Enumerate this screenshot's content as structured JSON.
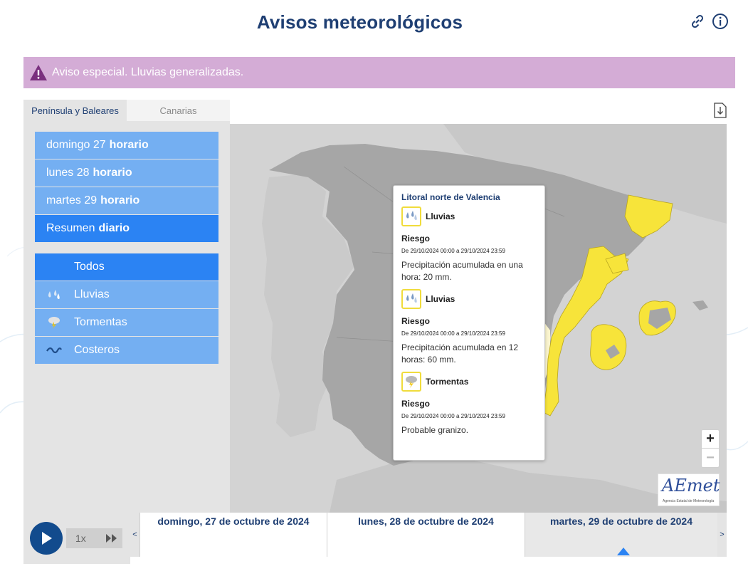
{
  "header": {
    "title": "Avisos meteorológicos",
    "icons": [
      "link-icon",
      "info-icon"
    ]
  },
  "banner": {
    "text": "Aviso especial. Lluvias generalizadas.",
    "color": "#d4acd6",
    "icon": "warning-icon"
  },
  "region_tabs": [
    {
      "label": "Península y Baleares",
      "active": true
    },
    {
      "label": "Canarias",
      "active": false
    }
  ],
  "days": [
    {
      "day": "domingo 27",
      "mode": "horario",
      "selected": false
    },
    {
      "day": "lunes 28",
      "mode": "horario",
      "selected": false
    },
    {
      "day": "martes 29",
      "mode": "horario",
      "selected": false
    },
    {
      "day": "Resumen",
      "mode": "diario",
      "selected": true
    }
  ],
  "categories": [
    {
      "label": "Todos",
      "icon": "",
      "selected": true
    },
    {
      "label": "Lluvias",
      "icon": "rain-icon",
      "selected": false
    },
    {
      "label": "Tormentas",
      "icon": "storm-icon",
      "selected": false
    },
    {
      "label": "Costeros",
      "icon": "coastal-icon",
      "selected": false
    }
  ],
  "popup": {
    "zone": "Litoral norte de Valencia",
    "warnings": [
      {
        "phenomenon": "Lluvias",
        "icon": "rain-icon",
        "level_label": "Riesgo",
        "period": "De 29/10/2024 00:00 a 29/10/2024 23:59",
        "description": "Precipitación acumulada en una hora: 20 mm."
      },
      {
        "phenomenon": "Lluvias",
        "icon": "rain-icon",
        "level_label": "Riesgo",
        "period": "De 29/10/2024 00:00 a 29/10/2024 23:59",
        "description": "Precipitación acumulada en 12 horas: 60 mm."
      },
      {
        "phenomenon": "Tormentas",
        "icon": "storm-icon",
        "level_label": "Riesgo",
        "period": "De 29/10/2024 00:00 a 29/10/2024 23:59",
        "description": "Probable granizo."
      }
    ]
  },
  "map_controls": {
    "zoom_in": "+",
    "zoom_out": "−"
  },
  "logo": {
    "text": "AEmet",
    "subtitle": "Agencia Estatal de Meteorología"
  },
  "player": {
    "speed": "1x"
  },
  "timeline": {
    "prev": "<",
    "next": ">",
    "days": [
      {
        "label": "domingo, 27 de octubre de 2024",
        "active": false
      },
      {
        "label": "lunes, 28 de octubre de 2024",
        "active": false
      },
      {
        "label": "martes, 29 de octubre de 2024",
        "active": true
      }
    ]
  },
  "colors": {
    "title": "#1f3f73",
    "warning_yellow": "#f7e43a",
    "menu_blue": "#74aff2",
    "menu_selected": "#2b83f3",
    "map_land": "#a7a7a7"
  }
}
